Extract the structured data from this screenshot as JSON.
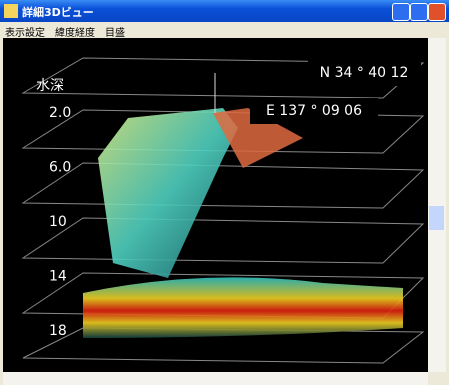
{
  "window": {
    "title": "詳細3Dビュー"
  },
  "menu": {
    "items": [
      "表示設定",
      "緯度経度",
      "目盛"
    ]
  },
  "view": {
    "depth_label": "水深",
    "depth_ticks": [
      "2.0",
      "6.0",
      "10",
      "14",
      "18"
    ],
    "latitude": "N 34 ° 40 12",
    "longitude": "E 137 ° 09 06"
  }
}
